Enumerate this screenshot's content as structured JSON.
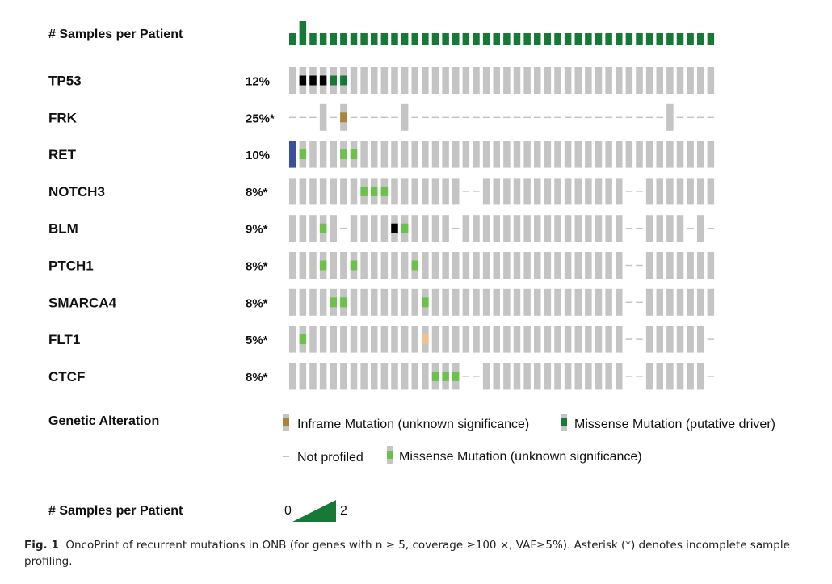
{
  "chart_data": {
    "type": "oncoprint",
    "samples_per_patient": {
      "label": "# Samples per Patient",
      "values": [
        1,
        2,
        1,
        1,
        1,
        1,
        1,
        1,
        1,
        1,
        1,
        1,
        1,
        1,
        1,
        1,
        1,
        1,
        1,
        1,
        1,
        1,
        1,
        1,
        1,
        1,
        1,
        1,
        1,
        1,
        1,
        1,
        1,
        1,
        1,
        1,
        1,
        1,
        1,
        1,
        1,
        1
      ]
    },
    "genes": [
      {
        "name": "TP53",
        "pct": "12%",
        "cells": [
          "G",
          "K",
          "K",
          "K",
          "D",
          "D",
          "G",
          "G",
          "G",
          "G",
          "G",
          "G",
          "G",
          "G",
          "G",
          "G",
          "G",
          "G",
          "G",
          "G",
          "G",
          "G",
          "G",
          "G",
          "G",
          "G",
          "G",
          "G",
          "G",
          "G",
          "G",
          "G",
          "G",
          "G",
          "G",
          "G",
          "G",
          "G",
          "G",
          "G",
          "G",
          "G"
        ]
      },
      {
        "name": "FRK",
        "pct": "25%*",
        "cells": [
          "N",
          "N",
          "N",
          "G",
          "N",
          "I",
          "N",
          "N",
          "N",
          "N",
          "N",
          "G",
          "N",
          "N",
          "N",
          "N",
          "N",
          "N",
          "N",
          "N",
          "N",
          "N",
          "N",
          "N",
          "N",
          "N",
          "N",
          "N",
          "N",
          "N",
          "N",
          "N",
          "N",
          "N",
          "N",
          "N",
          "N",
          "G",
          "N",
          "N",
          "N",
          "N"
        ]
      },
      {
        "name": "RET",
        "pct": "10%",
        "cells": [
          "B",
          "L",
          "G",
          "G",
          "G",
          "L",
          "L",
          "G",
          "G",
          "G",
          "G",
          "G",
          "G",
          "G",
          "G",
          "G",
          "G",
          "G",
          "G",
          "G",
          "G",
          "G",
          "G",
          "G",
          "G",
          "G",
          "G",
          "G",
          "G",
          "G",
          "G",
          "G",
          "G",
          "G",
          "G",
          "G",
          "G",
          "G",
          "G",
          "G",
          "G",
          "G"
        ]
      },
      {
        "name": "NOTCH3",
        "pct": "8%*",
        "cells": [
          "G",
          "G",
          "G",
          "G",
          "G",
          "G",
          "G",
          "L",
          "L",
          "L",
          "G",
          "G",
          "G",
          "G",
          "G",
          "G",
          "G",
          "N",
          "N",
          "G",
          "G",
          "G",
          "G",
          "G",
          "G",
          "G",
          "G",
          "G",
          "G",
          "G",
          "G",
          "G",
          "G",
          "N",
          "N",
          "G",
          "G",
          "G",
          "G",
          "G",
          "G",
          "G"
        ]
      },
      {
        "name": "BLM",
        "pct": "9%*",
        "cells": [
          "G",
          "G",
          "G",
          "L",
          "G",
          "N",
          "G",
          "G",
          "G",
          "G",
          "K",
          "L",
          "G",
          "G",
          "G",
          "G",
          "N",
          "G",
          "G",
          "G",
          "G",
          "G",
          "G",
          "G",
          "G",
          "G",
          "G",
          "G",
          "G",
          "G",
          "G",
          "G",
          "G",
          "N",
          "N",
          "G",
          "G",
          "G",
          "G",
          "N",
          "G",
          "N"
        ]
      },
      {
        "name": "PTCH1",
        "pct": "8%*",
        "cells": [
          "G",
          "G",
          "G",
          "L",
          "G",
          "G",
          "L",
          "G",
          "G",
          "G",
          "G",
          "G",
          "L",
          "G",
          "G",
          "G",
          "G",
          "G",
          "G",
          "G",
          "G",
          "G",
          "G",
          "G",
          "G",
          "G",
          "G",
          "G",
          "G",
          "G",
          "G",
          "G",
          "G",
          "N",
          "N",
          "G",
          "G",
          "G",
          "G",
          "G",
          "G",
          "G"
        ]
      },
      {
        "name": "SMARCA4",
        "pct": "8%*",
        "cells": [
          "G",
          "G",
          "G",
          "G",
          "L",
          "L",
          "G",
          "G",
          "G",
          "G",
          "G",
          "G",
          "G",
          "L",
          "G",
          "G",
          "G",
          "G",
          "G",
          "G",
          "G",
          "G",
          "G",
          "G",
          "G",
          "G",
          "G",
          "G",
          "G",
          "G",
          "G",
          "G",
          "G",
          "N",
          "N",
          "G",
          "G",
          "G",
          "G",
          "G",
          "G",
          "G"
        ]
      },
      {
        "name": "FLT1",
        "pct": "5%*",
        "cells": [
          "G",
          "L",
          "G",
          "G",
          "G",
          "G",
          "G",
          "G",
          "G",
          "G",
          "G",
          "G",
          "G",
          "P",
          "G",
          "G",
          "G",
          "G",
          "G",
          "G",
          "G",
          "G",
          "G",
          "G",
          "G",
          "G",
          "G",
          "G",
          "G",
          "G",
          "G",
          "G",
          "G",
          "N",
          "N",
          "G",
          "G",
          "G",
          "G",
          "G",
          "G",
          "N"
        ]
      },
      {
        "name": "CTCF",
        "pct": "8%*",
        "cells": [
          "G",
          "G",
          "G",
          "G",
          "G",
          "G",
          "G",
          "G",
          "G",
          "G",
          "G",
          "G",
          "G",
          "G",
          "L",
          "L",
          "L",
          "N",
          "N",
          "G",
          "G",
          "G",
          "G",
          "G",
          "G",
          "G",
          "G",
          "G",
          "G",
          "G",
          "G",
          "G",
          "G",
          "N",
          "N",
          "G",
          "G",
          "G",
          "G",
          "G",
          "G",
          "N"
        ]
      }
    ],
    "colors": {
      "unaltered": "#c4c4c4",
      "not_profiled": "#c4c4c4",
      "samples_bar": "#167a36",
      "missense_driver": "#167a36",
      "missense_unknown": "#6cc14a",
      "inframe_unknown": "#a8853b",
      "truncating": "#000000",
      "amplification": "#3a4ea3",
      "other": "#f2c08e"
    }
  },
  "legend": {
    "title": "Genetic Alteration",
    "items": [
      {
        "label": "Inframe Mutation (unknown significance)",
        "color": "#a8853b"
      },
      {
        "label": "Missense Mutation (putative driver)",
        "color": "#167a36"
      },
      {
        "label": "Not profiled",
        "color": "#c4c4c4"
      },
      {
        "label": "Missense Mutation (unknown significance)",
        "color": "#6cc14a"
      }
    ]
  },
  "scale": {
    "title": "# Samples per Patient",
    "min": "0",
    "max": "2"
  },
  "caption": {
    "fig": "Fig. 1",
    "text": "OncoPrint of recurrent mutations in ONB (for genes with n ≥ 5, coverage ≥100 ×, VAF≥5%). Asterisk (*) denotes incomplete sample profiling."
  }
}
